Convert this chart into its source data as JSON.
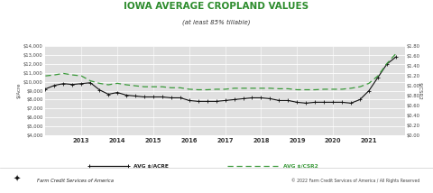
{
  "title": "IOWA AVERAGE CROPLAND VALUES",
  "subtitle": "(at least 85% tillable)",
  "years": [
    2012.0,
    2012.25,
    2012.5,
    2012.75,
    2013.0,
    2013.25,
    2013.5,
    2013.75,
    2014.0,
    2014.25,
    2014.5,
    2014.75,
    2015.0,
    2015.25,
    2015.5,
    2015.75,
    2016.0,
    2016.25,
    2016.5,
    2016.75,
    2017.0,
    2017.25,
    2017.5,
    2017.75,
    2018.0,
    2018.25,
    2018.5,
    2018.75,
    2019.0,
    2019.25,
    2019.5,
    2019.75,
    2020.0,
    2020.25,
    2020.5,
    2020.75,
    2021.0,
    2021.25,
    2021.5,
    2021.75
  ],
  "avg_acre": [
    9200,
    9600,
    9800,
    9700,
    9800,
    9900,
    9100,
    8600,
    8800,
    8500,
    8400,
    8300,
    8300,
    8300,
    8200,
    8200,
    7900,
    7800,
    7800,
    7800,
    7900,
    8000,
    8100,
    8200,
    8200,
    8100,
    7900,
    7900,
    7700,
    7600,
    7700,
    7700,
    7700,
    7700,
    7600,
    8000,
    9000,
    10500,
    12000,
    12800
  ],
  "avg_csr2": [
    1.2,
    1.22,
    1.25,
    1.22,
    1.2,
    1.1,
    1.05,
    1.02,
    1.05,
    1.02,
    1.0,
    0.98,
    0.98,
    0.98,
    0.96,
    0.96,
    0.93,
    0.92,
    0.92,
    0.93,
    0.93,
    0.95,
    0.95,
    0.95,
    0.95,
    0.95,
    0.94,
    0.94,
    0.92,
    0.92,
    0.92,
    0.93,
    0.93,
    0.93,
    0.95,
    0.98,
    1.05,
    1.2,
    1.45,
    1.65
  ],
  "acre_color": "#111111",
  "csr2_color": "#3a9a3a",
  "bg_color": "#e0e0e0",
  "title_color": "#2d8c2d",
  "ylabel_left": "$/Acre",
  "ylabel_right": "$/CSR2",
  "ylim_left": [
    4000,
    14000
  ],
  "ylim_right": [
    0,
    1.8
  ],
  "yticks_left": [
    4000,
    5000,
    6000,
    7000,
    8000,
    9000,
    10000,
    11000,
    12000,
    13000,
    14000
  ],
  "yticks_right": [
    0,
    0.2,
    0.4,
    0.6,
    0.8,
    1.0,
    1.2,
    1.4,
    1.6,
    1.8
  ],
  "xticks": [
    2013,
    2014,
    2015,
    2016,
    2017,
    2018,
    2019,
    2020,
    2021
  ],
  "xlim": [
    2012.0,
    2022.0
  ],
  "legend_acre": "AVG $/ACRE",
  "legend_csr2": "AVG $/CSR2",
  "footer_left": "Farm Credit Services of America",
  "footer_right": "© 2022 Farm Credit Services of America / All Rights Reserved"
}
